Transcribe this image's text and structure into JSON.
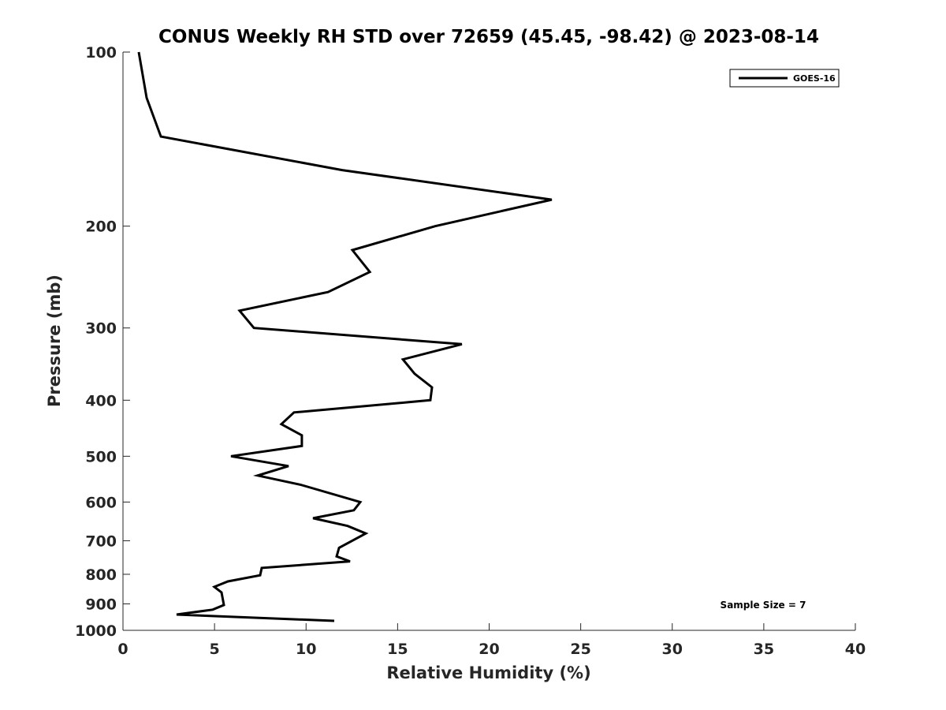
{
  "chart_data": {
    "type": "line",
    "title": "CONUS Weekly RH STD over 72659 (45.45, -98.42) @ 2023-08-14",
    "xlabel": "Relative Humidity (%)",
    "ylabel": "Pressure (mb)",
    "xlim": [
      0,
      40
    ],
    "ylim": [
      100,
      1000
    ],
    "yscale": "log",
    "yreversed": true,
    "grid": false,
    "xticks": [
      0,
      5,
      10,
      15,
      20,
      25,
      30,
      35,
      40
    ],
    "yticks": [
      100,
      200,
      300,
      400,
      500,
      600,
      700,
      800,
      900,
      1000
    ],
    "legend": {
      "position": "top-right",
      "entries": [
        "GOES-16"
      ]
    },
    "annotation": "Sample Size = 7",
    "series": [
      {
        "name": "GOES-16",
        "color": "#000000",
        "x": [
          0.86,
          1.29,
          2.07,
          11.97,
          23.42,
          17.05,
          12.53,
          13.48,
          11.2,
          6.37,
          7.15,
          18.51,
          15.29,
          15.93,
          16.88,
          16.79,
          9.34,
          8.65,
          9.77,
          9.77,
          5.9,
          9.04,
          7.36,
          9.69,
          12.96,
          12.61,
          10.38,
          12.27,
          13.26,
          11.8,
          11.67,
          12.4,
          7.58,
          7.49,
          5.73,
          4.99,
          5.38,
          5.51,
          4.9,
          2.93,
          11.54
        ],
        "y": [
          100,
          120,
          140,
          160,
          180,
          200,
          220,
          240,
          260,
          280,
          300,
          320,
          340,
          360,
          380,
          400,
          420,
          440,
          460,
          480,
          500,
          520,
          540,
          560,
          600,
          620,
          640,
          660,
          680,
          720,
          745,
          760,
          780,
          803,
          823,
          841,
          860,
          904,
          921,
          939,
          963
        ]
      }
    ]
  }
}
